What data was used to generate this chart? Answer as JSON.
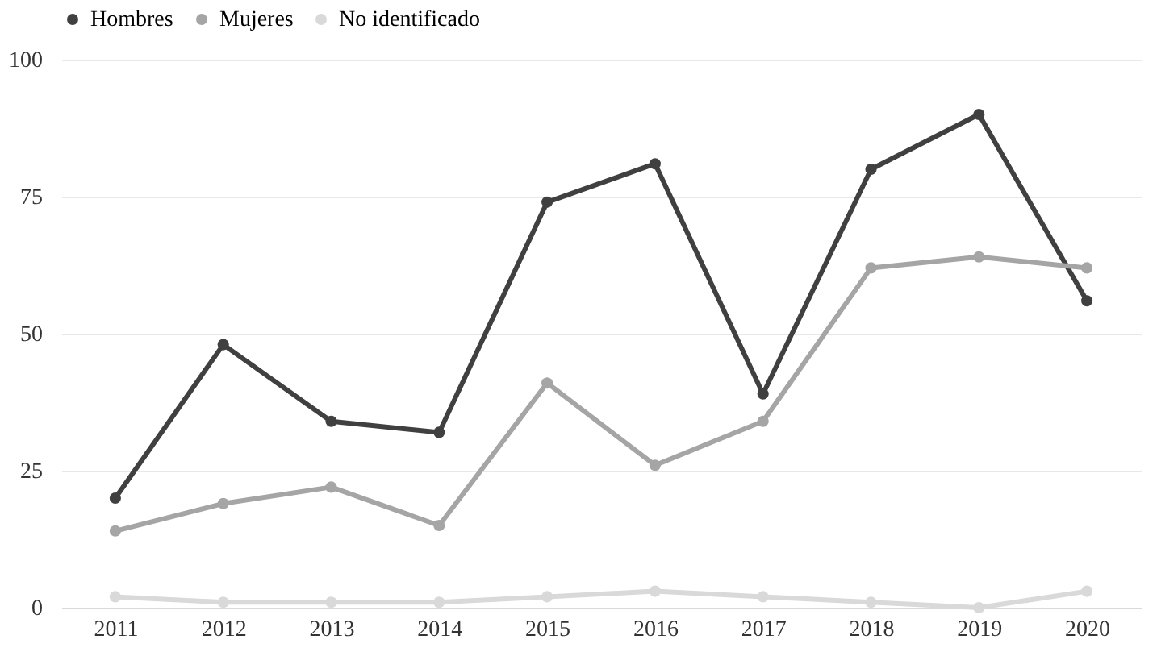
{
  "chart_data": {
    "type": "line",
    "categories": [
      "2011",
      "2012",
      "2013",
      "2014",
      "2015",
      "2016",
      "2017",
      "2018",
      "2019",
      "2020"
    ],
    "series": [
      {
        "name": "Hombres",
        "color": "#404040",
        "values": [
          20,
          48,
          34,
          32,
          74,
          81,
          39,
          80,
          90,
          56
        ]
      },
      {
        "name": "Mujeres",
        "color": "#a5a5a5",
        "values": [
          14,
          19,
          22,
          15,
          41,
          26,
          34,
          62,
          64,
          62
        ]
      },
      {
        "name": "No identificado",
        "color": "#d9d9d9",
        "values": [
          2,
          1,
          1,
          1,
          2,
          3,
          2,
          1,
          0,
          3
        ]
      }
    ],
    "ylim": [
      0,
      100
    ],
    "yticks": [
      0,
      25,
      50,
      75,
      100
    ],
    "grid": "y",
    "legend": "top",
    "marker": "circle",
    "line_style": "solid"
  }
}
